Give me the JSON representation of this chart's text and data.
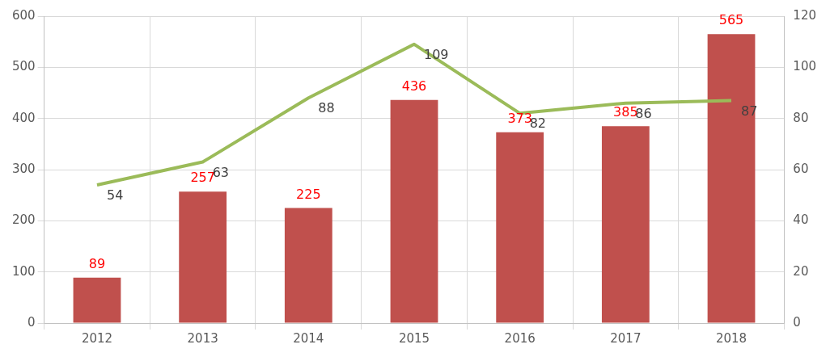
{
  "chart_data": {
    "type": "bar",
    "categories": [
      "2012",
      "2013",
      "2014",
      "2015",
      "2016",
      "2017",
      "2018"
    ],
    "series": [
      {
        "color": "#c0504d",
        "values": [
          89,
          257,
          225,
          436,
          373,
          385,
          565
        ]
      },
      {
        "type": "line",
        "axis": "y2",
        "color": "#9bbb59",
        "values": [
          54,
          63,
          88,
          109,
          82,
          86,
          87
        ]
      }
    ],
    "ylim": [
      0,
      600
    ],
    "yticks": [
      0,
      100,
      200,
      300,
      400,
      500,
      600
    ],
    "y2lim": [
      0,
      120
    ],
    "y2ticks": [
      0,
      20,
      40,
      60,
      80,
      100,
      120
    ],
    "grid": true,
    "legend": false,
    "data_labels": true,
    "marker": "none"
  }
}
